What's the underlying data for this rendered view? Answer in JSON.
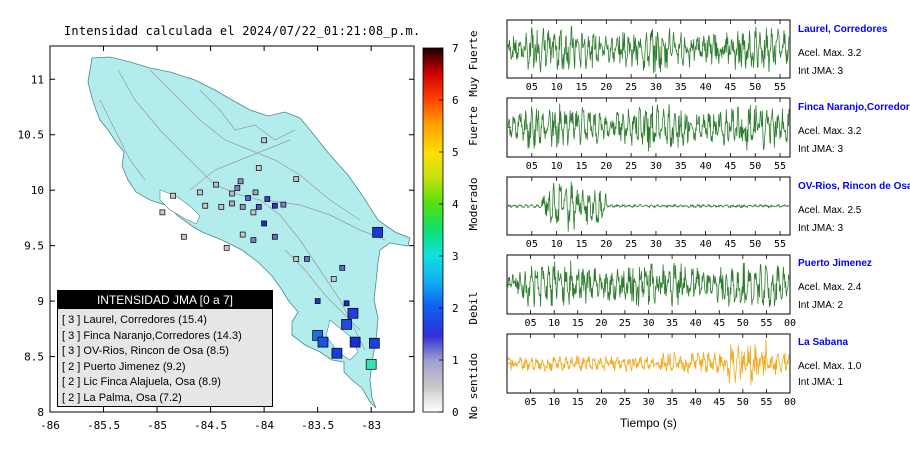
{
  "map": {
    "title": "Intensidad calculada el 2024/07/22_01:21:08_p.m.",
    "x_ticks": [
      "-86",
      "-85.5",
      "-85",
      "-84.5",
      "-84",
      "-83.5",
      "-83"
    ],
    "y_ticks": [
      "11",
      "10.5",
      "10",
      "9.5",
      "9",
      "8.5",
      "8"
    ],
    "colorbar_ticks": [
      "0",
      "1",
      "2",
      "3",
      "4",
      "5",
      "6",
      "7"
    ],
    "colorbar_labels": [
      "No sentido",
      "Debil",
      "Moderado",
      "Fuerte",
      "Muy Fuerte"
    ],
    "legend_title": "INTENSIDAD JMA [0 a 7]",
    "legend_items": [
      "[ 3 ]  Laurel, Corredores (15.4)",
      "[ 3 ]  Finca Naranjo,Corredores (14.3)",
      "[ 3 ]  OV-Rios, Rincon de Osa (8.5)",
      "[ 2 ]  Puerto Jimenez (9.2)",
      "[ 2 ]  Lic Finca Alajuela, Osa (8.9)",
      "[ 2 ]  La Palma, Osa (7.2)"
    ],
    "land_color": "#b3ecec",
    "station_points": [
      {
        "lon": -82.94,
        "lat": 9.62,
        "size": "large",
        "color": "#1a3ad8"
      },
      {
        "lon": -83.17,
        "lat": 8.89,
        "size": "large",
        "color": "#1e3fe0"
      },
      {
        "lon": -83.23,
        "lat": 8.79,
        "size": "large",
        "color": "#1f49e6"
      },
      {
        "lon": -83.5,
        "lat": 8.69,
        "size": "large",
        "color": "#1d6fe6"
      },
      {
        "lon": -83.45,
        "lat": 8.63,
        "size": "large",
        "color": "#1d4fe3"
      },
      {
        "lon": -83.15,
        "lat": 8.63,
        "size": "large",
        "color": "#1b2cd6"
      },
      {
        "lon": -83.32,
        "lat": 8.53,
        "size": "large",
        "color": "#1b3ad9"
      },
      {
        "lon": -82.97,
        "lat": 8.62,
        "size": "large",
        "color": "#1d3fe0"
      },
      {
        "lon": -83.0,
        "lat": 8.43,
        "size": "large",
        "color": "#3fe0b0"
      },
      {
        "lon": -83.23,
        "lat": 8.98,
        "size": "small",
        "color": "#2424c8"
      },
      {
        "lon": -83.5,
        "lat": 9.0,
        "size": "small",
        "color": "#2e2ec8"
      },
      {
        "lon": -83.27,
        "lat": 9.3,
        "size": "small",
        "color": "#5a6ad0"
      },
      {
        "lon": -83.6,
        "lat": 9.38,
        "size": "small",
        "color": "#7070c8"
      },
      {
        "lon": -84.1,
        "lat": 9.55,
        "size": "small",
        "color": "#8080c0"
      },
      {
        "lon": -83.9,
        "lat": 9.58,
        "size": "small",
        "color": "#6a6acc"
      },
      {
        "lon": -84.0,
        "lat": 9.7,
        "size": "small",
        "color": "#2030c8"
      },
      {
        "lon": -84.05,
        "lat": 9.85,
        "size": "small",
        "color": "#5050c8"
      },
      {
        "lon": -84.15,
        "lat": 9.93,
        "size": "small",
        "color": "#6060d0"
      },
      {
        "lon": -84.08,
        "lat": 9.98,
        "size": "small",
        "color": "#a0a0c8"
      },
      {
        "lon": -83.97,
        "lat": 9.92,
        "size": "small",
        "color": "#4040c8"
      },
      {
        "lon": -83.9,
        "lat": 9.86,
        "size": "small",
        "color": "#3434c0"
      },
      {
        "lon": -83.82,
        "lat": 9.87,
        "size": "small",
        "color": "#8080c8"
      },
      {
        "lon": -84.25,
        "lat": 10.02,
        "size": "small",
        "color": "#7a7ad0"
      },
      {
        "lon": -84.3,
        "lat": 9.97,
        "size": "small",
        "color": "#b8b8c8"
      },
      {
        "lon": -84.45,
        "lat": 10.05,
        "size": "small",
        "color": "#c0c0c8"
      },
      {
        "lon": -84.22,
        "lat": 10.08,
        "size": "small",
        "color": "#9090c8"
      },
      {
        "lon": -84.05,
        "lat": 10.2,
        "size": "small",
        "color": "#c8c8c8"
      },
      {
        "lon": -84.0,
        "lat": 10.45,
        "size": "small",
        "color": "#c8c8c8"
      },
      {
        "lon": -83.7,
        "lat": 10.1,
        "size": "small",
        "color": "#c0c0c8"
      },
      {
        "lon": -84.6,
        "lat": 9.98,
        "size": "small",
        "color": "#c8c8c8"
      },
      {
        "lon": -84.55,
        "lat": 9.86,
        "size": "small",
        "color": "#c8c8c8"
      },
      {
        "lon": -84.4,
        "lat": 9.85,
        "size": "small",
        "color": "#c0c0c8"
      },
      {
        "lon": -84.3,
        "lat": 9.88,
        "size": "small",
        "color": "#a8a8cc"
      },
      {
        "lon": -84.2,
        "lat": 9.85,
        "size": "small",
        "color": "#9898c8"
      },
      {
        "lon": -84.1,
        "lat": 9.8,
        "size": "small",
        "color": "#c8c8c8"
      },
      {
        "lon": -84.75,
        "lat": 9.58,
        "size": "small",
        "color": "#c8c8c8"
      },
      {
        "lon": -84.85,
        "lat": 9.95,
        "size": "small",
        "color": "#c8c8c8"
      },
      {
        "lon": -84.95,
        "lat": 9.8,
        "size": "small",
        "color": "#c8c8c8"
      },
      {
        "lon": -84.35,
        "lat": 9.48,
        "size": "small",
        "color": "#c8c8c8"
      },
      {
        "lon": -84.2,
        "lat": 9.6,
        "size": "small",
        "color": "#c8c8c8"
      },
      {
        "lon": -83.7,
        "lat": 9.38,
        "size": "small",
        "color": "#c8c8c8"
      },
      {
        "lon": -83.35,
        "lat": 9.2,
        "size": "small",
        "color": "#c8c8c8"
      }
    ]
  },
  "traces": [
    {
      "title": "Laurel, Corredores",
      "acc": "Acel. Max. 3.2",
      "int": "Int JMA: 3",
      "color": "#2e7d2e",
      "style": "full"
    },
    {
      "title": "Finca Naranjo,Corredores",
      "acc": "Acel. Max. 3.2",
      "int": "Int JMA: 3",
      "color": "#2e7d2e",
      "style": "full"
    },
    {
      "title": "OV-Rios, Rincon de Osa",
      "acc": "Acel. Max. 2.5",
      "int": "Int JMA: 3",
      "color": "#2e7d2e",
      "style": "burst"
    },
    {
      "title": "Puerto Jimenez",
      "acc": "Acel. Max. 2.4",
      "int": "Int JMA: 2",
      "color": "#2e7d2e",
      "style": "full"
    },
    {
      "title": "La Sabana",
      "acc": "Acel. Max. 1.0",
      "int": "Int JMA: 1",
      "color": "#f2a91c",
      "style": "late"
    }
  ],
  "trace_axes": [
    [
      "05",
      "10",
      "15",
      "20",
      "25",
      "30",
      "35",
      "40",
      "45",
      "50",
      "55"
    ],
    [
      "05",
      "10",
      "15",
      "20",
      "25",
      "30",
      "35",
      "40",
      "45",
      "50",
      "55"
    ],
    [
      "05",
      "10",
      "15",
      "20",
      "25",
      "30",
      "35",
      "40",
      "45",
      "50",
      "55"
    ],
    [
      "05",
      "10",
      "15",
      "20",
      "25",
      "30",
      "35",
      "40",
      "45",
      "50",
      "55",
      "00"
    ],
    [
      "05",
      "10",
      "15",
      "20",
      "25",
      "30",
      "35",
      "40",
      "45",
      "50",
      "55",
      "00"
    ]
  ],
  "time_axis_label": "Tiempo (s)"
}
